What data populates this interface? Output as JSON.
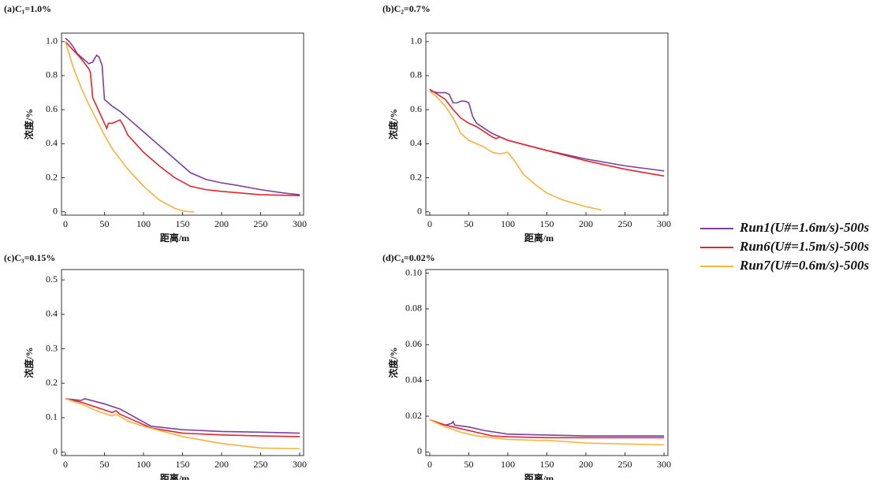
{
  "chart_data": [
    {
      "type": "line",
      "title": "(a)C₁=1.0%",
      "xlabel": "距离/m",
      "ylabel": "浓度/%",
      "xlim": [
        -5,
        305
      ],
      "ylim": [
        -0.02,
        1.05
      ],
      "xticks": [
        0,
        50,
        100,
        150,
        200,
        250,
        300
      ],
      "yticks": [
        0,
        0.2,
        0.4,
        0.6,
        0.8,
        {
          "value": 1,
          "label": "1.0"
        }
      ],
      "series": [
        {
          "name": "Run1(U#=1.6m/s)-500s",
          "color": "#7b3f9e",
          "x": [
            0,
            5,
            10,
            15,
            20,
            25,
            30,
            35,
            40,
            43,
            47,
            50,
            55,
            60,
            70,
            80,
            90,
            100,
            110,
            120,
            130,
            140,
            150,
            160,
            170,
            180,
            200,
            220,
            250,
            280,
            300
          ],
          "values": [
            1.02,
            1.0,
            0.97,
            0.93,
            0.91,
            0.89,
            0.87,
            0.88,
            0.92,
            0.91,
            0.86,
            0.66,
            0.64,
            0.62,
            0.59,
            0.55,
            0.51,
            0.47,
            0.43,
            0.39,
            0.35,
            0.31,
            0.27,
            0.23,
            0.21,
            0.19,
            0.17,
            0.155,
            0.13,
            0.11,
            0.1
          ]
        },
        {
          "name": "Run6(U#=1.5m/s)-500s",
          "color": "#e0262d",
          "x": [
            0,
            10,
            20,
            30,
            32,
            35,
            40,
            45,
            50,
            53,
            55,
            60,
            65,
            70,
            75,
            80,
            90,
            100,
            120,
            140,
            160,
            180,
            200,
            250,
            300
          ],
          "values": [
            1.0,
            0.95,
            0.9,
            0.84,
            0.82,
            0.67,
            0.62,
            0.57,
            0.52,
            0.49,
            0.52,
            0.52,
            0.53,
            0.54,
            0.5,
            0.45,
            0.4,
            0.35,
            0.27,
            0.2,
            0.15,
            0.13,
            0.12,
            0.1,
            0.095
          ]
        },
        {
          "name": "Run7(U#=0.6m/s)-500s",
          "color": "#f5b33c",
          "x": [
            0,
            10,
            20,
            30,
            40,
            50,
            60,
            80,
            100,
            120,
            140,
            150,
            160,
            165
          ],
          "values": [
            1.0,
            0.85,
            0.73,
            0.63,
            0.54,
            0.45,
            0.37,
            0.25,
            0.15,
            0.07,
            0.02,
            0.005,
            0,
            0
          ]
        }
      ]
    },
    {
      "type": "line",
      "title": "(b)C₂=0.7%",
      "xlabel": "距离/m",
      "ylabel": "浓度/%",
      "xlim": [
        -5,
        305
      ],
      "ylim": [
        -0.02,
        1.05
      ],
      "xticks": [
        0,
        50,
        100,
        150,
        200,
        250,
        300
      ],
      "yticks": [
        0,
        0.2,
        0.4,
        0.6,
        0.8,
        {
          "value": 1,
          "label": "1.0"
        }
      ],
      "series": [
        {
          "color": "#7b3f9e",
          "x": [
            0,
            10,
            20,
            25,
            30,
            35,
            40,
            45,
            50,
            55,
            60,
            70,
            80,
            100,
            150,
            200,
            250,
            300
          ],
          "values": [
            0.71,
            0.7,
            0.7,
            0.69,
            0.64,
            0.64,
            0.65,
            0.65,
            0.64,
            0.56,
            0.52,
            0.49,
            0.46,
            0.42,
            0.36,
            0.31,
            0.27,
            0.24
          ]
        },
        {
          "color": "#e0262d",
          "x": [
            0,
            10,
            20,
            30,
            40,
            50,
            60,
            70,
            80,
            85,
            90,
            100,
            150,
            200,
            250,
            300
          ],
          "values": [
            0.72,
            0.69,
            0.66,
            0.6,
            0.55,
            0.52,
            0.5,
            0.47,
            0.44,
            0.43,
            0.44,
            0.42,
            0.36,
            0.3,
            0.25,
            0.21
          ]
        },
        {
          "color": "#f5b33c",
          "x": [
            0,
            10,
            20,
            30,
            40,
            50,
            60,
            70,
            80,
            90,
            100,
            110,
            120,
            135,
            150,
            170,
            200,
            220
          ],
          "values": [
            0.71,
            0.67,
            0.62,
            0.55,
            0.46,
            0.42,
            0.4,
            0.38,
            0.35,
            0.34,
            0.35,
            0.29,
            0.22,
            0.16,
            0.11,
            0.07,
            0.03,
            0.01
          ]
        }
      ]
    },
    {
      "type": "line",
      "title": "(c)C₃=0.15%",
      "xlabel": "距离/m",
      "ylabel": "浓度/%",
      "xlim": [
        -5,
        305
      ],
      "ylim": [
        -0.01,
        0.53
      ],
      "xticks": [
        0,
        50,
        100,
        150,
        200,
        250,
        300
      ],
      "yticks": [
        0,
        0.1,
        0.2,
        0.3,
        0.4,
        0.5
      ],
      "series": [
        {
          "color": "#7b3f9e",
          "x": [
            0,
            20,
            25,
            30,
            50,
            70,
            90,
            110,
            150,
            200,
            250,
            300
          ],
          "values": [
            0.155,
            0.15,
            0.155,
            0.152,
            0.14,
            0.125,
            0.1,
            0.075,
            0.065,
            0.06,
            0.058,
            0.055
          ]
        },
        {
          "color": "#e0262d",
          "x": [
            0,
            20,
            40,
            60,
            65,
            70,
            90,
            110,
            150,
            200,
            250,
            300
          ],
          "values": [
            0.155,
            0.145,
            0.13,
            0.115,
            0.12,
            0.11,
            0.09,
            0.07,
            0.055,
            0.05,
            0.047,
            0.045
          ]
        },
        {
          "color": "#f5b33c",
          "x": [
            0,
            20,
            40,
            60,
            65,
            80,
            100,
            150,
            200,
            250,
            300
          ],
          "values": [
            0.155,
            0.14,
            0.12,
            0.105,
            0.11,
            0.09,
            0.075,
            0.045,
            0.025,
            0.012,
            0.01
          ]
        }
      ]
    },
    {
      "type": "line",
      "title": "(d)C₄=0.02%",
      "xlabel": "距离/m",
      "ylabel": "浓度/%",
      "xlim": [
        -5,
        305
      ],
      "ylim": [
        -0.002,
        0.102
      ],
      "xticks": [
        0,
        50,
        100,
        150,
        200,
        250,
        300
      ],
      "yticks": [
        0,
        0.02,
        0.04,
        0.06,
        0.08,
        {
          "value": 0.1,
          "label": "0.10"
        }
      ],
      "series": [
        {
          "color": "#7b3f9e",
          "x": [
            0,
            20,
            28,
            30,
            32,
            50,
            70,
            100,
            150,
            200,
            300
          ],
          "values": [
            0.018,
            0.015,
            0.016,
            0.017,
            0.015,
            0.014,
            0.012,
            0.01,
            0.0095,
            0.009,
            0.009
          ]
        },
        {
          "color": "#e0262d",
          "x": [
            0,
            20,
            40,
            60,
            80,
            100,
            150,
            200,
            300
          ],
          "values": [
            0.018,
            0.015,
            0.013,
            0.011,
            0.009,
            0.0085,
            0.008,
            0.008,
            0.008
          ]
        },
        {
          "color": "#f5b33c",
          "x": [
            0,
            20,
            40,
            60,
            100,
            140,
            150,
            200,
            300
          ],
          "values": [
            0.018,
            0.014,
            0.011,
            0.009,
            0.007,
            0.0065,
            0.0065,
            0.005,
            0.004
          ]
        }
      ]
    }
  ]
}
